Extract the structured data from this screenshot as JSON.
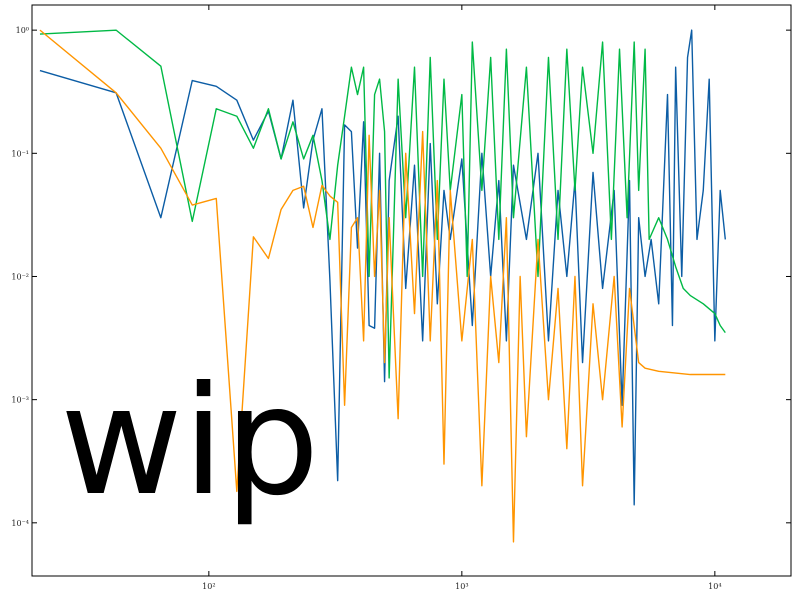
{
  "chart_data": {
    "type": "line",
    "annotation": "wip",
    "xscale": "log",
    "yscale": "log",
    "xlim": [
      20,
      20000
    ],
    "ylim": [
      3.7e-05,
      1.6
    ],
    "xticks": [
      {
        "value": 100,
        "label": "10²"
      },
      {
        "value": 1000,
        "label": "10³"
      },
      {
        "value": 10000,
        "label": "10⁴"
      }
    ],
    "yticks": [
      {
        "value": 0.0001,
        "label": "10⁻⁴"
      },
      {
        "value": 0.001,
        "label": "10⁻³"
      },
      {
        "value": 0.01,
        "label": "10⁻²"
      },
      {
        "value": 0.1,
        "label": "10⁻¹"
      },
      {
        "value": 1,
        "label": "10⁰"
      }
    ],
    "series": [
      {
        "color": "#0c5da5",
        "x": [
          21.5,
          43,
          64.6,
          86,
          107,
          129,
          150,
          172,
          193,
          215,
          237,
          258,
          280,
          301,
          323,
          344,
          366,
          387,
          409,
          430,
          452,
          473,
          495,
          516,
          560,
          600,
          650,
          700,
          750,
          800,
          850,
          900,
          1000,
          1100,
          1200,
          1300,
          1400,
          1500,
          1600,
          1800,
          2000,
          2200,
          2400,
          2600,
          2800,
          3000,
          3300,
          3600,
          4000,
          4300,
          4600,
          4800,
          5000,
          5300,
          5600,
          6000,
          6500,
          6800,
          7000,
          7400,
          7800,
          8100,
          8500,
          9000,
          9500,
          10000,
          10500,
          11000
        ],
        "values": [
          0.47,
          0.31,
          0.03,
          0.39,
          0.35,
          0.27,
          0.128,
          0.22,
          0.09,
          0.27,
          0.036,
          0.128,
          0.23,
          0.0093,
          0.00022,
          0.17,
          0.15,
          0.017,
          0.18,
          0.004,
          0.0038,
          0.1,
          0.0014,
          0.06,
          0.2,
          0.008,
          0.08,
          0.003,
          0.12,
          0.006,
          0.05,
          0.02,
          0.09,
          0.004,
          0.1,
          0.01,
          0.06,
          0.003,
          0.08,
          0.02,
          0.1,
          0.003,
          0.05,
          0.01,
          0.06,
          0.002,
          0.07,
          0.008,
          0.05,
          0.0009,
          0.06,
          0.00014,
          0.03,
          0.01,
          0.02,
          0.006,
          0.3,
          0.004,
          0.5,
          0.01,
          0.6,
          1.0,
          0.02,
          0.05,
          0.4,
          0.003,
          0.05,
          0.02
        ]
      },
      {
        "color": "#00b945",
        "x": [
          21.5,
          43,
          64.6,
          86,
          107,
          129,
          150,
          172,
          193,
          215,
          237,
          258,
          280,
          301,
          323,
          344,
          366,
          387,
          409,
          430,
          452,
          473,
          495,
          516,
          560,
          600,
          650,
          700,
          750,
          800,
          850,
          900,
          1000,
          1050,
          1100,
          1200,
          1300,
          1400,
          1500,
          1600,
          1800,
          2000,
          2200,
          2400,
          2600,
          2800,
          3000,
          3300,
          3600,
          3900,
          4200,
          4500,
          4800,
          5000,
          5300,
          5500,
          6000,
          6500,
          7000,
          7500,
          8000,
          9000,
          10000,
          10500,
          11000
        ],
        "values": [
          0.93,
          1.0,
          0.51,
          0.028,
          0.23,
          0.2,
          0.11,
          0.23,
          0.09,
          0.18,
          0.09,
          0.14,
          0.06,
          0.02,
          0.08,
          0.2,
          0.5,
          0.3,
          0.5,
          0.01,
          0.3,
          0.4,
          0.15,
          0.0015,
          0.4,
          0.03,
          0.5,
          0.01,
          0.6,
          0.02,
          0.4,
          0.05,
          0.3,
          0.01,
          0.8,
          0.05,
          0.6,
          0.02,
          0.7,
          0.03,
          0.5,
          0.01,
          0.6,
          0.02,
          0.7,
          0.05,
          0.5,
          0.1,
          0.8,
          0.02,
          0.7,
          0.03,
          0.8,
          0.05,
          0.7,
          0.02,
          0.03,
          0.02,
          0.012,
          0.008,
          0.007,
          0.006,
          0.005,
          0.004,
          0.0035
        ]
      },
      {
        "color": "#ff9500",
        "x": [
          21.5,
          43,
          64.6,
          86,
          107,
          129,
          150,
          172,
          193,
          215,
          237,
          258,
          280,
          301,
          323,
          344,
          366,
          387,
          409,
          430,
          452,
          473,
          495,
          516,
          560,
          600,
          650,
          700,
          750,
          800,
          850,
          900,
          1000,
          1100,
          1200,
          1300,
          1400,
          1500,
          1600,
          1700,
          1800,
          2000,
          2200,
          2400,
          2600,
          2800,
          3000,
          3300,
          3600,
          4000,
          4300,
          4600,
          5000,
          5300,
          6000,
          8000,
          11000
        ],
        "values": [
          1.0,
          0.31,
          0.11,
          0.038,
          0.043,
          0.00018,
          0.021,
          0.014,
          0.035,
          0.05,
          0.054,
          0.025,
          0.055,
          0.045,
          0.04,
          0.0009,
          0.025,
          0.03,
          0.003,
          0.14,
          0.01,
          0.05,
          0.002,
          0.03,
          0.0007,
          0.1,
          0.005,
          0.15,
          0.003,
          0.06,
          0.0003,
          0.05,
          0.003,
          0.02,
          0.0002,
          0.01,
          0.002,
          0.03,
          7e-05,
          0.01,
          0.0005,
          0.02,
          0.001,
          0.008,
          0.0004,
          0.01,
          0.0002,
          0.006,
          0.001,
          0.01,
          0.0006,
          0.008,
          0.002,
          0.0018,
          0.0017,
          0.0016,
          0.0016
        ]
      }
    ]
  }
}
